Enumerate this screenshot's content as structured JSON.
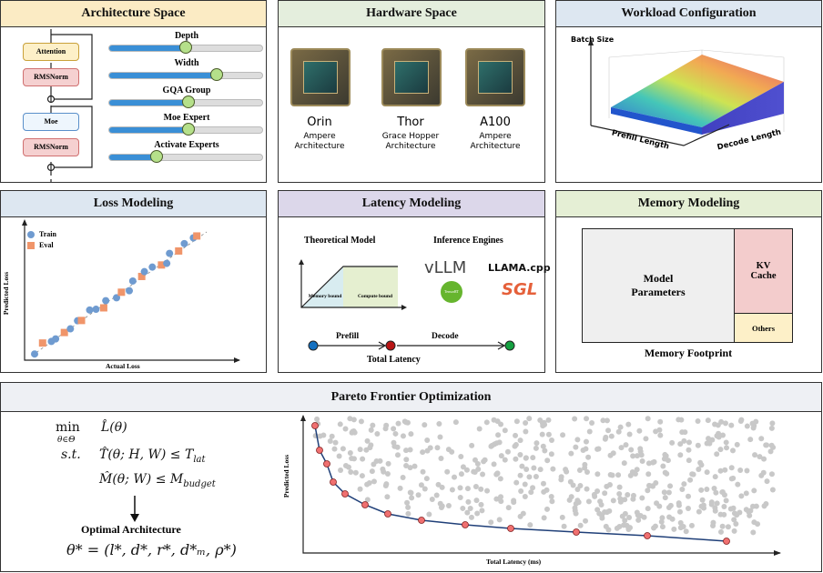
{
  "architecture": {
    "title": "Architecture Space",
    "blocks": [
      "Attention",
      "RMSNorm",
      "Moe",
      "RMSNorm"
    ],
    "sliders": [
      {
        "label": "Depth",
        "value": 0.5
      },
      {
        "label": "Width",
        "value": 0.7
      },
      {
        "label": "GQA Group",
        "value": 0.52
      },
      {
        "label": "Moe Expert",
        "value": 0.52
      },
      {
        "label": "Activate Experts",
        "value": 0.31
      }
    ]
  },
  "hardware": {
    "title": "Hardware Space",
    "devices": [
      {
        "name": "Orin",
        "arch": "Ampere Architecture"
      },
      {
        "name": "Thor",
        "arch": "Grace Hopper Architecture"
      },
      {
        "name": "A100",
        "arch": "Ampere Architecture"
      }
    ]
  },
  "workload": {
    "title": "Workload Configuration",
    "z_label": "Batch Size",
    "x_label": "Prefill Length",
    "y_label": "Decode Length"
  },
  "loss": {
    "title": "Loss Modeling",
    "legend": [
      "Train",
      "Eval"
    ],
    "xlabel": "Actual Loss",
    "ylabel": "Predicted Loss"
  },
  "latency": {
    "title": "Latency Modeling",
    "theory_title": "Theoretical Model",
    "engines_title": "Inference Engines",
    "memory_bound": "Memory bound",
    "compute_bound": "Compute bound",
    "engines": [
      "vLLM",
      "LLAMA.cpp",
      "TensorRT",
      "SGL"
    ],
    "prefill": "Prefill",
    "decode": "Decode",
    "total": "Total Latency"
  },
  "memory": {
    "title": "Memory Modeling",
    "model_params": "Model Parameters",
    "kv_cache": "KV Cache",
    "others": "Others",
    "footer": "Memory Footprint"
  },
  "pareto": {
    "title": "Pareto Frontier Optimization",
    "min": "min",
    "min_sub": "θ∈Θ",
    "objective": "L̂(θ)",
    "st": "s.t.",
    "c1": "T̂(θ; H, W) ≤ T",
    "c1_sub": "lat",
    "c2": "M̂(θ; W) ≤ M",
    "c2_sub": "budget",
    "opt_label": "Optimal Architecture",
    "opt": "θ* = (l*, d*, r*, d*ₘ, ρ*)",
    "xlabel": "Total Latency (ms)",
    "ylabel": "Predicted Loss"
  },
  "colors": {
    "arch": "#fbebc4",
    "hw": "#e4eedd",
    "wl": "#dde7f1",
    "loss": "#dde7f1",
    "lat": "#dcd7ea",
    "mem": "#e5efd5",
    "pareto": "#eef0f4"
  }
}
